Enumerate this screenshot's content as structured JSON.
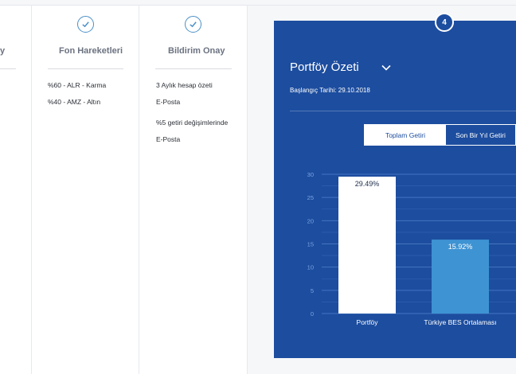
{
  "panels": [
    {
      "title": "y",
      "items": []
    },
    {
      "title": "Fon Hareketleri",
      "items": [
        "%60 - ALR - Karma",
        "%40 - AMZ - Altın"
      ]
    },
    {
      "title": "Bildirim Onay",
      "items": [
        "3 Aylık hesap özeti",
        "E-Posta",
        "%5 getiri değişimlerinde",
        "E-Posta"
      ]
    }
  ],
  "summary": {
    "step": "4",
    "title": "Portföy Özeti",
    "start_date": "Başlangıç Tarihi: 29.10.2018",
    "tabs": [
      {
        "label": "Toplam Getiri",
        "active": true
      },
      {
        "label": "Son Bir Yıl Getiri",
        "active": false
      }
    ]
  },
  "chart_data": {
    "type": "bar",
    "categories": [
      "Portföy",
      "Türkiye BES Ortalaması"
    ],
    "values": [
      29.49,
      15.92
    ],
    "value_labels": [
      "29.49%",
      "15.92%"
    ],
    "bar_colors": [
      "#ffffff",
      "#3e93d3"
    ],
    "label_colors": [
      "#1c2b4a",
      "#ffffff"
    ],
    "ylim": [
      0,
      30
    ],
    "yticks": [
      "0",
      "5",
      "10",
      "15",
      "20",
      "25",
      "30"
    ],
    "grid": true
  },
  "colors": {
    "card": "#1c4d9f",
    "accent": "#4a90c8",
    "grid": "#4a78c4",
    "tick": "#7ea4e0"
  }
}
